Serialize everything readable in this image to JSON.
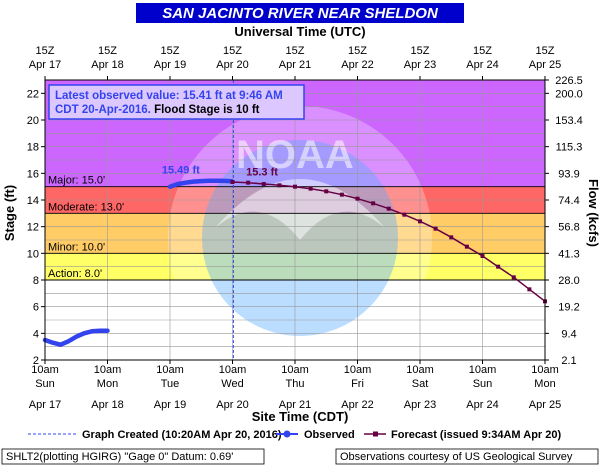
{
  "chart_data": {
    "type": "line",
    "title": "SAN JACINTO RIVER NEAR SHELDON",
    "top_axis_title": "Universal Time (UTC)",
    "xlabel": "Site Time (CDT)",
    "ylabel": "Stage (ft)",
    "y2label": "Flow (kcfs)",
    "xlim": [
      "2016-04-17 10:00",
      "2016-04-25 10:00"
    ],
    "ylim": [
      2,
      23
    ],
    "y_ticks": [
      2,
      4,
      6,
      8,
      10,
      12,
      14,
      16,
      18,
      20,
      22
    ],
    "top_ticks": [
      {
        "line1": "15Z",
        "line2": "Apr 17"
      },
      {
        "line1": "15Z",
        "line2": "Apr 18"
      },
      {
        "line1": "15Z",
        "line2": "Apr 19"
      },
      {
        "line1": "15Z",
        "line2": "Apr 20"
      },
      {
        "line1": "15Z",
        "line2": "Apr 21"
      },
      {
        "line1": "15Z",
        "line2": "Apr 22"
      },
      {
        "line1": "15Z",
        "line2": "Apr 23"
      },
      {
        "line1": "15Z",
        "line2": "Apr 24"
      },
      {
        "line1": "15Z",
        "line2": "Apr 25"
      }
    ],
    "bottom_ticks": [
      {
        "time": "10am",
        "day": "Sun",
        "date": "Apr 17"
      },
      {
        "time": "10am",
        "day": "Mon",
        "date": "Apr 18"
      },
      {
        "time": "10am",
        "day": "Tue",
        "date": "Apr 19"
      },
      {
        "time": "10am",
        "day": "Wed",
        "date": "Apr 20"
      },
      {
        "time": "10am",
        "day": "Thu",
        "date": "Apr 21"
      },
      {
        "time": "10am",
        "day": "Fri",
        "date": "Apr 22"
      },
      {
        "time": "10am",
        "day": "Sat",
        "date": "Apr 23"
      },
      {
        "time": "10am",
        "day": "Sun",
        "date": "Apr 24"
      },
      {
        "time": "10am",
        "day": "Mon",
        "date": "Apr 25"
      }
    ],
    "flow_ticks": [
      {
        "stage": 2,
        "label": "2.1"
      },
      {
        "stage": 4,
        "label": "9.4"
      },
      {
        "stage": 6,
        "label": "19.2"
      },
      {
        "stage": 8,
        "label": "28.0"
      },
      {
        "stage": 10,
        "label": "41.3"
      },
      {
        "stage": 12,
        "label": "56.8"
      },
      {
        "stage": 14,
        "label": "74.4"
      },
      {
        "stage": 16,
        "label": "93.9"
      },
      {
        "stage": 18,
        "label": "115.3"
      },
      {
        "stage": 20,
        "label": "153.4"
      },
      {
        "stage": 22,
        "label": "200.0"
      },
      {
        "stage": 23,
        "label": "226.5"
      }
    ],
    "flood_bands": [
      {
        "name": "Action",
        "label": "Action: 8.0'",
        "from": 8,
        "to": 10,
        "color": "#ffff66"
      },
      {
        "name": "Minor",
        "label": "Minor: 10.0'",
        "from": 10,
        "to": 13,
        "color": "#ffcc66"
      },
      {
        "name": "Moderate",
        "label": "Moderate: 13.0'",
        "from": 13,
        "to": 15,
        "color": "#ff6666"
      },
      {
        "name": "Major",
        "label": "Major: 15.0'",
        "from": 15,
        "to": 23,
        "color": "#cc66ff"
      }
    ],
    "series": [
      {
        "name": "Observed",
        "color": "#3344ee",
        "points": [
          {
            "x": "2016-04-17 10:00",
            "y": 3.5
          },
          {
            "x": "2016-04-17 13:00",
            "y": 3.3
          },
          {
            "x": "2016-04-17 16:00",
            "y": 3.15
          },
          {
            "x": "2016-04-17 19:00",
            "y": 3.4
          },
          {
            "x": "2016-04-17 22:00",
            "y": 3.75
          },
          {
            "x": "2016-04-18 01:00",
            "y": 4.0
          },
          {
            "x": "2016-04-18 04:00",
            "y": 4.15
          },
          {
            "x": "2016-04-18 07:00",
            "y": 4.2
          },
          {
            "x": "2016-04-18 10:00",
            "y": 4.2
          },
          {
            "x": "2016-04-19 10:00",
            "y": 15.0
          },
          {
            "x": "2016-04-19 13:00",
            "y": 15.2
          },
          {
            "x": "2016-04-19 16:00",
            "y": 15.3
          },
          {
            "x": "2016-04-19 19:00",
            "y": 15.38
          },
          {
            "x": "2016-04-19 22:00",
            "y": 15.42
          },
          {
            "x": "2016-04-20 01:00",
            "y": 15.45
          },
          {
            "x": "2016-04-20 04:00",
            "y": 15.45
          },
          {
            "x": "2016-04-20 07:00",
            "y": 15.43
          },
          {
            "x": "2016-04-20 09:46",
            "y": 15.41
          }
        ]
      },
      {
        "name": "Forecast (issued 9:34AM Apr 20)",
        "color": "#660044",
        "points": [
          {
            "x": "2016-04-20 10:00",
            "y": 15.35
          },
          {
            "x": "2016-04-20 16:00",
            "y": 15.3
          },
          {
            "x": "2016-04-20 22:00",
            "y": 15.2
          },
          {
            "x": "2016-04-21 04:00",
            "y": 15.1
          },
          {
            "x": "2016-04-21 10:00",
            "y": 15.0
          },
          {
            "x": "2016-04-21 16:00",
            "y": 14.85
          },
          {
            "x": "2016-04-21 22:00",
            "y": 14.65
          },
          {
            "x": "2016-04-22 04:00",
            "y": 14.4
          },
          {
            "x": "2016-04-22 10:00",
            "y": 14.1
          },
          {
            "x": "2016-04-22 16:00",
            "y": 13.75
          },
          {
            "x": "2016-04-22 22:00",
            "y": 13.35
          },
          {
            "x": "2016-04-23 04:00",
            "y": 12.9
          },
          {
            "x": "2016-04-23 10:00",
            "y": 12.4
          },
          {
            "x": "2016-04-23 16:00",
            "y": 11.85
          },
          {
            "x": "2016-04-23 22:00",
            "y": 11.2
          },
          {
            "x": "2016-04-24 04:00",
            "y": 10.5
          },
          {
            "x": "2016-04-24 10:00",
            "y": 9.8
          },
          {
            "x": "2016-04-24 16:00",
            "y": 9.0
          },
          {
            "x": "2016-04-24 22:00",
            "y": 8.2
          },
          {
            "x": "2016-04-25 04:00",
            "y": 7.3
          },
          {
            "x": "2016-04-25 10:00",
            "y": 6.4
          }
        ]
      }
    ],
    "graph_created": {
      "x": "2016-04-20 10:20",
      "label": "Graph Created (10:20AM Apr 20, 2016)"
    },
    "annotations": [
      {
        "text": "15.49 ft",
        "x": "2016-04-19 23:00",
        "y": 15.45,
        "color": "#3344ee"
      },
      {
        "text": "15.3 ft",
        "x": "2016-04-20 16:00",
        "y": 15.3,
        "color": "#660044"
      }
    ],
    "info_box": {
      "line1": "Latest observed value: 15.41  ft at 9:46 AM",
      "line2_blue": "CDT 20-Apr-2016.",
      "line2_black": " Flood Stage is 10 ft"
    },
    "legend_placement": "bottom",
    "grid": true,
    "watermark": "NATIONAL OCEANIC AND ATMOSPHERIC ADMINISTRATION  U.S. DEPARTMENT OF COMMERCE  NOAA",
    "footer": {
      "left": "SHLT2(plotting HGIRG) \"Gage 0\" Datum: 0.69'",
      "right": "Observations courtesy of US Geological Survey"
    },
    "colors": {
      "title_bg": "#0000cc",
      "observed": "#3344ee",
      "forecast": "#660044",
      "info_box_border": "#3344ee"
    }
  }
}
